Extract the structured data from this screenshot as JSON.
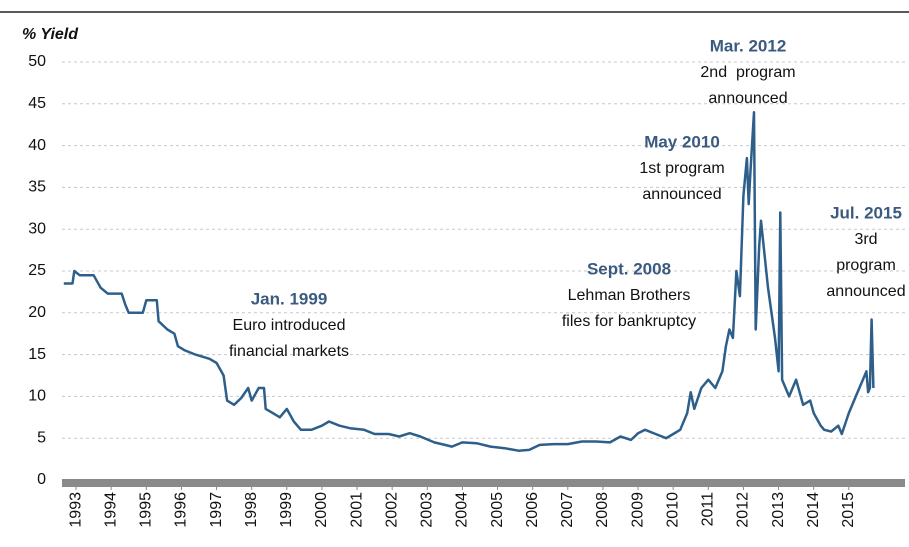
{
  "chart_data": {
    "type": "line",
    "y_label": "% Yield",
    "color": "#2e5f8a",
    "grid": true,
    "ylim": [
      0,
      50
    ],
    "yticks": [
      0,
      5,
      10,
      15,
      20,
      25,
      30,
      35,
      40,
      45,
      50
    ],
    "xlim": [
      1992.6,
      2016.6
    ],
    "xticks": [
      1993,
      1994,
      1995,
      1996,
      1997,
      1998,
      1999,
      2000,
      2001,
      2002,
      2003,
      2004,
      2005,
      2006,
      2007,
      2008,
      2009,
      2010,
      2011,
      2012,
      2013,
      2014,
      2015
    ],
    "x": [
      1992.65,
      1992.9,
      1992.95,
      1993.1,
      1993.5,
      1993.7,
      1993.9,
      1994.3,
      1994.4,
      1994.5,
      1994.9,
      1995.0,
      1995.3,
      1995.35,
      1995.6,
      1995.8,
      1995.9,
      1996.1,
      1996.4,
      1996.8,
      1997.0,
      1997.2,
      1997.3,
      1997.5,
      1997.7,
      1997.9,
      1998.0,
      1998.2,
      1998.35,
      1998.4,
      1998.6,
      1998.8,
      1999.0,
      1999.2,
      1999.4,
      1999.7,
      2000.0,
      2000.2,
      2000.5,
      2000.8,
      2001.2,
      2001.5,
      2001.9,
      2002.2,
      2002.5,
      2002.8,
      2003.2,
      2003.5,
      2003.7,
      2004.0,
      2004.4,
      2004.8,
      2005.2,
      2005.6,
      2005.9,
      2006.2,
      2006.6,
      2007.0,
      2007.4,
      2007.8,
      2008.2,
      2008.5,
      2008.8,
      2009.0,
      2009.2,
      2009.5,
      2009.8,
      2010.0,
      2010.2,
      2010.4,
      2010.5,
      2010.6,
      2010.8,
      2011.0,
      2011.2,
      2011.4,
      2011.5,
      2011.6,
      2011.7,
      2011.8,
      2011.9,
      2012.0,
      2012.1,
      2012.15,
      2012.2,
      2012.3,
      2012.35,
      2012.45,
      2012.5,
      2012.6,
      2012.7,
      2012.8,
      2012.9,
      2013.0,
      2013.05,
      2013.1,
      2013.3,
      2013.5,
      2013.7,
      2013.9,
      2014.0,
      2014.2,
      2014.3,
      2014.5,
      2014.7,
      2014.8,
      2015.0,
      2015.2,
      2015.4,
      2015.5,
      2015.55,
      2015.6,
      2015.65,
      2015.7
    ],
    "values": [
      23.5,
      23.5,
      25,
      24.5,
      24.5,
      23,
      22.3,
      22.3,
      21,
      20,
      20,
      21.5,
      21.5,
      19,
      18,
      17.5,
      16,
      15.5,
      15,
      14.5,
      14,
      12.5,
      9.5,
      9,
      9.8,
      11,
      9.5,
      11,
      11,
      8.5,
      8,
      7.5,
      8.5,
      7,
      6,
      6,
      6.5,
      7,
      6.5,
      6.2,
      6,
      5.5,
      5.5,
      5.2,
      5.6,
      5.2,
      4.5,
      4.2,
      4,
      4.5,
      4.4,
      4,
      3.8,
      3.5,
      3.6,
      4.2,
      4.3,
      4.3,
      4.6,
      4.6,
      4.5,
      5.2,
      4.8,
      5.6,
      6,
      5.5,
      5,
      5.5,
      6,
      8,
      10.5,
      8.5,
      11,
      12,
      11,
      13,
      16,
      18,
      17,
      25,
      22,
      34,
      38.5,
      33,
      37,
      44,
      18,
      28,
      31,
      27,
      23,
      20,
      17,
      13,
      32,
      12,
      10,
      12,
      9,
      9.5,
      8,
      6.5,
      6,
      5.8,
      6.5,
      5.5,
      8,
      10,
      12,
      13,
      10.5,
      11,
      19.2,
      11
    ],
    "annotations": [
      {
        "title": "Jan. 1999",
        "lines": [
          "Euro introduced",
          "financial markets"
        ]
      },
      {
        "title": "Sept. 2008",
        "lines": [
          "Lehman Brothers",
          "files for bankruptcy"
        ]
      },
      {
        "title": "May 2010",
        "lines": [
          "1st program",
          "announced"
        ]
      },
      {
        "title": "Mar. 2012",
        "lines": [
          "2nd  program",
          "announced"
        ]
      },
      {
        "title": "Jul. 2015",
        "lines": [
          "3rd",
          "program",
          "announced"
        ]
      }
    ]
  }
}
